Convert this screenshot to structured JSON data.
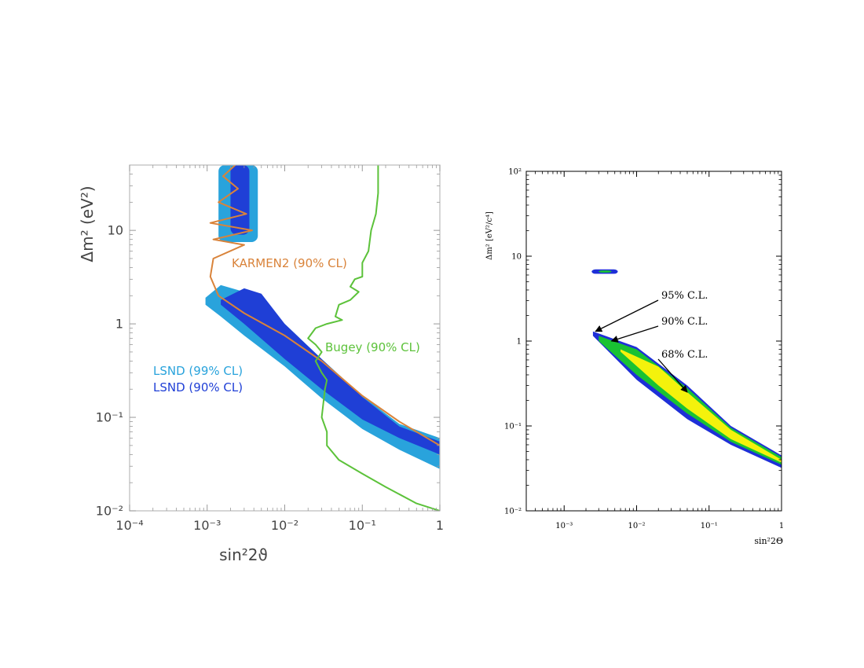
{
  "chart_data": [
    {
      "type": "area",
      "xlabel": "sin²2ϑ",
      "ylabel": "Δm² (eV²)",
      "xscale": "log",
      "yscale": "log",
      "xlim": [
        0.0001,
        1
      ],
      "ylim": [
        0.01,
        50
      ],
      "grid": false,
      "x_ticks": [
        {
          "value": 0.0001,
          "label": "10⁻⁴"
        },
        {
          "value": 0.001,
          "label": "10⁻³"
        },
        {
          "value": 0.01,
          "label": "10⁻²"
        },
        {
          "value": 0.1,
          "label": "10⁻¹"
        },
        {
          "value": 1,
          "label": "1"
        }
      ],
      "y_ticks": [
        {
          "value": 0.01,
          "label": "10⁻²"
        },
        {
          "value": 0.1,
          "label": "10⁻¹"
        },
        {
          "value": 1,
          "label": "1"
        },
        {
          "value": 10,
          "label": "10"
        }
      ],
      "regions": [
        {
          "name": "LSND (99% CL)",
          "color": "#29a3dc",
          "band": {
            "upper": [
              [
                0.00095,
                1.9
              ],
              [
                0.0015,
                2.6
              ],
              [
                0.003,
                2.2
              ],
              [
                0.01,
                1.0
              ],
              [
                0.03,
                0.42
              ],
              [
                0.1,
                0.17
              ],
              [
                0.3,
                0.085
              ],
              [
                1,
                0.06
              ]
            ],
            "lower": [
              [
                0.00095,
                1.6
              ],
              [
                0.0015,
                1.2
              ],
              [
                0.003,
                0.75
              ],
              [
                0.01,
                0.35
              ],
              [
                0.03,
                0.16
              ],
              [
                0.1,
                0.075
              ],
              [
                0.3,
                0.045
              ],
              [
                1,
                0.028
              ]
            ]
          },
          "islands": [
            {
              "x": [
                0.0014,
                0.0045
              ],
              "y": [
                7.5,
                50
              ]
            }
          ]
        },
        {
          "name": "LSND (90% CL)",
          "color": "#1f3fd6",
          "band": {
            "upper": [
              [
                0.0015,
                1.8
              ],
              [
                0.003,
                2.4
              ],
              [
                0.005,
                2.1
              ],
              [
                0.01,
                1.0
              ],
              [
                0.03,
                0.42
              ],
              [
                0.1,
                0.165
              ],
              [
                0.3,
                0.08
              ],
              [
                1,
                0.055
              ]
            ],
            "lower": [
              [
                0.0015,
                1.6
              ],
              [
                0.003,
                1.0
              ],
              [
                0.01,
                0.42
              ],
              [
                0.03,
                0.2
              ],
              [
                0.1,
                0.095
              ],
              [
                0.3,
                0.06
              ],
              [
                1,
                0.04
              ]
            ]
          },
          "islands": [
            {
              "x": [
                0.002,
                0.0035
              ],
              "y": [
                9,
                50
              ]
            }
          ]
        }
      ],
      "series": [
        {
          "name": "KARMEN2 (90% CL)",
          "color": "#d9833a",
          "x": [
            0.0023,
            0.0016,
            0.0025,
            0.0014,
            0.0032,
            0.0011,
            0.0038,
            0.0012,
            0.003,
            0.0012,
            0.0011,
            0.0014,
            0.003,
            0.01,
            0.03,
            0.1,
            0.3,
            1
          ],
          "y": [
            50,
            38,
            28,
            20,
            15,
            12,
            10,
            8,
            7,
            5,
            3.2,
            2.0,
            1.3,
            0.75,
            0.4,
            0.17,
            0.09,
            0.05
          ]
        },
        {
          "name": "Bugey (90% CL)",
          "color": "#5cc23a",
          "x": [
            0.16,
            0.16,
            0.15,
            0.13,
            0.12,
            0.1,
            0.1,
            0.08,
            0.07,
            0.09,
            0.07,
            0.05,
            0.045,
            0.055,
            0.035,
            0.025,
            0.02,
            0.025,
            0.03,
            0.025,
            0.03,
            0.035,
            0.033,
            0.03,
            0.035,
            0.035,
            0.05,
            0.1,
            0.2,
            0.5,
            1
          ],
          "y": [
            50,
            25,
            15,
            10,
            6,
            4.5,
            3.2,
            3.0,
            2.5,
            2.2,
            1.8,
            1.6,
            1.2,
            1.1,
            1.0,
            0.9,
            0.7,
            0.6,
            0.5,
            0.4,
            0.3,
            0.25,
            0.2,
            0.1,
            0.07,
            0.05,
            0.035,
            0.025,
            0.018,
            0.012,
            0.01
          ]
        }
      ]
    },
    {
      "type": "area",
      "xlabel": "sin²2Θ",
      "ylabel": "Δm² [eV²/c⁴]",
      "xscale": "log",
      "yscale": "log",
      "xlim": [
        0.0003,
        1
      ],
      "ylim": [
        0.01,
        100
      ],
      "grid": false,
      "x_ticks": [
        {
          "value": 0.001,
          "label": "10⁻³"
        },
        {
          "value": 0.01,
          "label": "10⁻²"
        },
        {
          "value": 0.1,
          "label": "10⁻¹"
        },
        {
          "value": 1,
          "label": "1"
        }
      ],
      "y_ticks": [
        {
          "value": 0.01,
          "label": "10⁻²"
        },
        {
          "value": 0.1,
          "label": "10⁻¹"
        },
        {
          "value": 1,
          "label": "1"
        },
        {
          "value": 10,
          "label": "10"
        },
        {
          "value": 100,
          "label": "10²"
        }
      ],
      "regions": [
        {
          "name": "95% C.L.",
          "color": "#1e2fd8",
          "band": {
            "upper": [
              [
                0.0025,
                1.3
              ],
              [
                0.01,
                0.85
              ],
              [
                0.05,
                0.3
              ],
              [
                0.2,
                0.1
              ],
              [
                1,
                0.045
              ]
            ],
            "lower": [
              [
                0.0025,
                1.15
              ],
              [
                0.01,
                0.35
              ],
              [
                0.05,
                0.12
              ],
              [
                0.2,
                0.06
              ],
              [
                1,
                0.032
              ]
            ]
          },
          "islands": [
            {
              "x": [
                0.0024,
                0.0055
              ],
              "y": [
                6.2,
                7.0
              ]
            }
          ]
        },
        {
          "name": "90% C.L.",
          "color": "#19c233",
          "band": {
            "upper": [
              [
                0.003,
                1.15
              ],
              [
                0.01,
                0.8
              ],
              [
                0.05,
                0.28
              ],
              [
                0.2,
                0.095
              ],
              [
                1,
                0.043
              ]
            ],
            "lower": [
              [
                0.003,
                1.0
              ],
              [
                0.01,
                0.4
              ],
              [
                0.05,
                0.14
              ],
              [
                0.2,
                0.065
              ],
              [
                1,
                0.035
              ]
            ]
          },
          "islands": [
            {
              "x": [
                0.003,
                0.0045
              ],
              "y": [
                6.4,
                6.8
              ]
            }
          ]
        },
        {
          "name": "68% C.L.",
          "color": "#f4f20c",
          "band": {
            "upper": [
              [
                0.006,
                0.8
              ],
              [
                0.02,
                0.5
              ],
              [
                0.05,
                0.25
              ],
              [
                0.2,
                0.09
              ],
              [
                1,
                0.04
              ]
            ],
            "lower": [
              [
                0.006,
                0.75
              ],
              [
                0.02,
                0.3
              ],
              [
                0.05,
                0.16
              ],
              [
                0.2,
                0.07
              ],
              [
                1,
                0.037
              ]
            ]
          },
          "islands": []
        }
      ],
      "annotations": [
        {
          "text": "95% C.L.",
          "target": [
            0.0027,
            1.3
          ]
        },
        {
          "text": "90% C.L.",
          "target": [
            0.0045,
            1.0
          ]
        },
        {
          "text": "68% C.L.",
          "target": [
            0.05,
            0.25
          ]
        }
      ]
    }
  ]
}
